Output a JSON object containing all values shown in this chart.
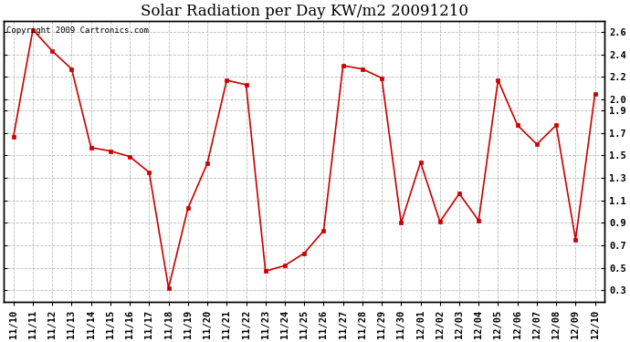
{
  "title": "Solar Radiation per Day KW/m2 20091210",
  "copyright": "Copyright 2009 Cartronics.com",
  "labels": [
    "11/10",
    "11/11",
    "11/12",
    "11/13",
    "11/14",
    "11/15",
    "11/16",
    "11/17",
    "11/18",
    "11/19",
    "11/20",
    "11/21",
    "11/22",
    "11/23",
    "11/24",
    "11/25",
    "11/26",
    "11/27",
    "11/28",
    "11/29",
    "11/30",
    "12/01",
    "12/02",
    "12/03",
    "12/04",
    "12/05",
    "12/06",
    "12/07",
    "12/08",
    "12/09",
    "12/10"
  ],
  "values": [
    1.67,
    2.62,
    2.43,
    2.27,
    1.57,
    1.54,
    1.49,
    1.35,
    0.32,
    1.03,
    1.43,
    2.17,
    2.13,
    0.47,
    0.52,
    0.63,
    0.83,
    2.3,
    2.27,
    2.19,
    0.9,
    1.44,
    0.91,
    1.16,
    0.92,
    2.17,
    1.77,
    1.6,
    1.77,
    0.75,
    2.05
  ],
  "line_color": "#cc0000",
  "marker_size": 3,
  "bg_color": "#ffffff",
  "grid_color": "#bbbbbb",
  "ylim_min": 0.2,
  "ylim_max": 2.7,
  "yticks": [
    0.3,
    0.5,
    0.7,
    0.9,
    1.1,
    1.3,
    1.5,
    1.7,
    1.9,
    2.0,
    2.2,
    2.4,
    2.6
  ],
  "ytick_labels": [
    "0.3",
    "0.5",
    "0.7",
    "0.9",
    "1.1",
    "1.3",
    "1.5",
    "1.7",
    "1.9",
    "2.0",
    "2.2",
    "2.4",
    "2.6"
  ],
  "title_fontsize": 12,
  "tick_fontsize": 7.5,
  "copyright_fontsize": 6.5
}
